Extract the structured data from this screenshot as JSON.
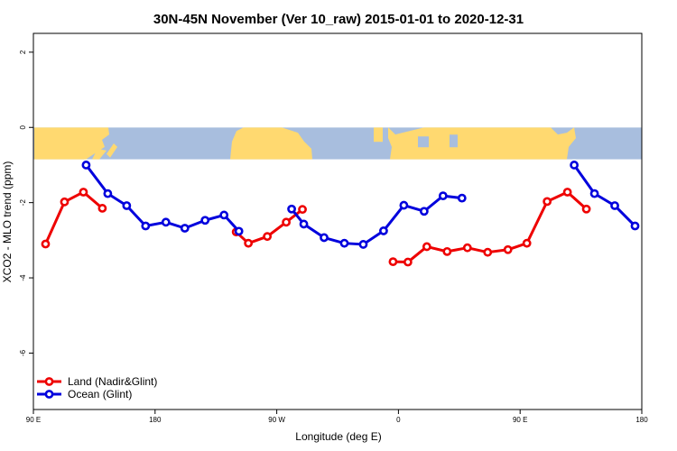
{
  "chart_data": {
    "type": "line",
    "title": "30N-45N November (Ver 10_raw)   2015-01-01 to 2020-12-31",
    "xlabel": "Longitude (deg E)",
    "ylabel": "XCO2 - MLO trend (ppm)",
    "xlim": [
      90,
      540
    ],
    "ylim": [
      -7.5,
      2.5
    ],
    "x_ticks": [
      {
        "value": 90,
        "label": "90 E"
      },
      {
        "value": 180,
        "label": "180"
      },
      {
        "value": 270,
        "label": "90 W"
      },
      {
        "value": 360,
        "label": "0"
      },
      {
        "value": 450,
        "label": "90 E"
      },
      {
        "value": 540,
        "label": "180"
      }
    ],
    "y_ticks": [
      {
        "value": 2,
        "label": "2"
      },
      {
        "value": 0,
        "label": "0"
      },
      {
        "value": -2,
        "label": "-2"
      },
      {
        "value": -4,
        "label": "-4"
      },
      {
        "value": -6,
        "label": "-6"
      }
    ],
    "map_band": {
      "y_top": 0,
      "y_bottom": -0.85,
      "land_color": "#FFD970",
      "ocean_color": "#A8BEDE"
    },
    "legend_position": "bottom-left",
    "series": [
      {
        "name": "Land (Nadir&Glint)",
        "color": "#EE0000",
        "segments": [
          [
            [
              99,
              -3.1
            ],
            [
              113,
              -1.98
            ],
            [
              127,
              -1.72
            ],
            [
              141,
              -2.15
            ]
          ],
          [
            [
              240,
              -2.78
            ],
            [
              249,
              -3.08
            ],
            [
              263,
              -2.9
            ],
            [
              277,
              -2.52
            ],
            [
              289,
              -2.18
            ]
          ],
          [
            [
              356,
              -3.57
            ],
            [
              367,
              -3.58
            ],
            [
              381,
              -3.17
            ],
            [
              396,
              -3.3
            ],
            [
              411,
              -3.2
            ],
            [
              426,
              -3.32
            ],
            [
              441,
              -3.25
            ],
            [
              455,
              -3.08
            ],
            [
              470,
              -1.97
            ],
            [
              485,
              -1.72
            ],
            [
              499,
              -2.17
            ]
          ]
        ]
      },
      {
        "name": "Ocean (Glint)",
        "color": "#0000DD",
        "segments": [
          [
            [
              129,
              -1.0
            ],
            [
              145,
              -1.76
            ],
            [
              159,
              -2.08
            ],
            [
              173,
              -2.62
            ],
            [
              188,
              -2.52
            ],
            [
              202,
              -2.68
            ],
            [
              217,
              -2.47
            ],
            [
              231,
              -2.33
            ],
            [
              242,
              -2.76
            ]
          ],
          [
            [
              281,
              -2.17
            ],
            [
              290,
              -2.57
            ],
            [
              305,
              -2.93
            ],
            [
              320,
              -3.08
            ],
            [
              334,
              -3.11
            ],
            [
              349,
              -2.75
            ],
            [
              364,
              -2.07
            ],
            [
              379,
              -2.23
            ],
            [
              393,
              -1.82
            ],
            [
              407,
              -1.88
            ]
          ],
          [
            [
              490,
              -1.0
            ],
            [
              505,
              -1.76
            ],
            [
              520,
              -2.08
            ],
            [
              535,
              -2.62
            ]
          ]
        ]
      }
    ]
  }
}
